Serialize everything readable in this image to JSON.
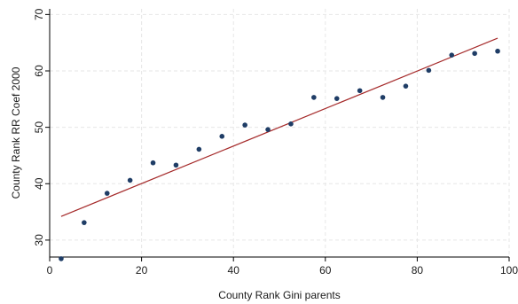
{
  "chart_data": {
    "type": "scatter",
    "title": "",
    "xlabel": "County Rank Gini parents",
    "ylabel": "County Rank RR Coef 2000",
    "xlim": [
      0,
      100
    ],
    "ylim": [
      27,
      71
    ],
    "xticks": [
      0,
      20,
      40,
      60,
      80,
      100
    ],
    "yticks": [
      30,
      40,
      50,
      60,
      70
    ],
    "grid": true,
    "series": [
      {
        "kind": "scatter",
        "color": "#1f3d66",
        "x": [
          2.5,
          7.5,
          12.5,
          17.5,
          22.5,
          27.5,
          32.5,
          37.5,
          42.5,
          47.5,
          52.5,
          57.5,
          62.5,
          67.5,
          72.5,
          77.5,
          82.5,
          87.5,
          92.5,
          97.5
        ],
        "y": [
          26.7,
          33.1,
          38.3,
          40.6,
          43.7,
          43.3,
          46.1,
          48.4,
          50.4,
          49.6,
          50.6,
          55.3,
          55.1,
          56.5,
          55.3,
          57.3,
          60.1,
          62.8,
          63.1,
          63.5
        ]
      },
      {
        "kind": "line",
        "color": "#a52a2a",
        "x": [
          2.5,
          97.5
        ],
        "y": [
          34.2,
          65.8
        ]
      }
    ]
  }
}
